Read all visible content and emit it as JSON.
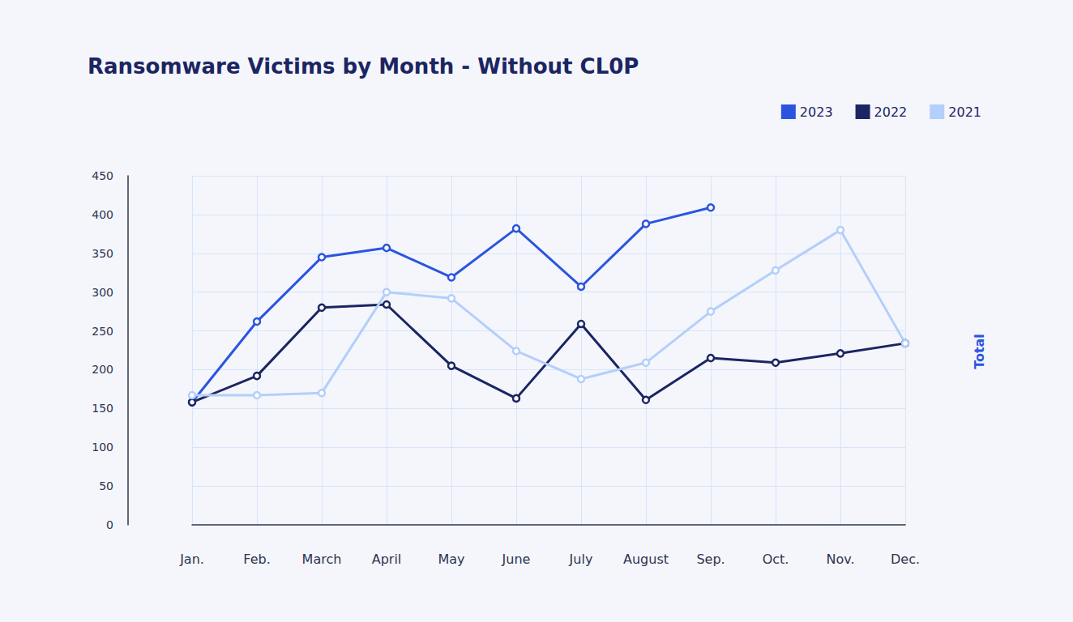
{
  "chart_data": {
    "type": "line",
    "title": "Ransomware Victims by Month - Without CL0P",
    "y_label": "Total",
    "categories": [
      "Jan.",
      "Feb.",
      "March",
      "April",
      "May",
      "June",
      "July",
      "August",
      "Sep.",
      "Oct.",
      "Nov.",
      "Dec."
    ],
    "series": [
      {
        "name": "2023",
        "color": "#2b55e0",
        "values": [
          158,
          262,
          345,
          357,
          319,
          382,
          307,
          388,
          409,
          null,
          null,
          null
        ]
      },
      {
        "name": "2022",
        "color": "#1b2562",
        "values": [
          158,
          192,
          280,
          284,
          205,
          163,
          259,
          161,
          215,
          209,
          221,
          234
        ]
      },
      {
        "name": "2021",
        "color": "#b3cffb",
        "values": [
          167,
          167,
          170,
          300,
          292,
          224,
          188,
          209,
          275,
          328,
          380,
          234
        ]
      }
    ],
    "ylim": [
      0,
      450
    ],
    "yticks": [
      0,
      50,
      100,
      150,
      200,
      250,
      300,
      350,
      400,
      450
    ],
    "grid": true,
    "legend": "top-right",
    "marker": "circle"
  }
}
